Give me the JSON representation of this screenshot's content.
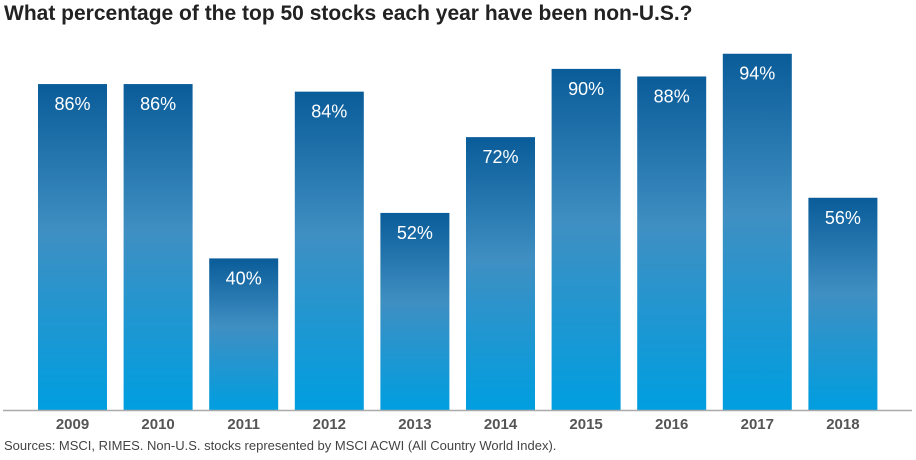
{
  "chart_data": {
    "type": "bar",
    "title": "What percentage of the top 50 stocks each year have been non-U.S.?",
    "categories": [
      "2009",
      "2010",
      "2011",
      "2012",
      "2013",
      "2014",
      "2015",
      "2016",
      "2017",
      "2018"
    ],
    "values": [
      86,
      86,
      40,
      84,
      52,
      72,
      90,
      88,
      94,
      56
    ],
    "data_labels": [
      "86%",
      "86%",
      "40%",
      "84%",
      "52%",
      "72%",
      "90%",
      "88%",
      "94%",
      "56%"
    ],
    "xlabel": "",
    "ylabel": "",
    "ylim": [
      0,
      100
    ],
    "grid": false,
    "source": "Sources: MSCI, RIMES. Non-U.S. stocks represented by MSCI ACWI (All Country World Index).",
    "colors": {
      "top": "#0a5c99",
      "mid": "#3f8fc2",
      "bottom": "#009ee0",
      "axis": "#aaaaaa",
      "tick": "#555555"
    }
  }
}
